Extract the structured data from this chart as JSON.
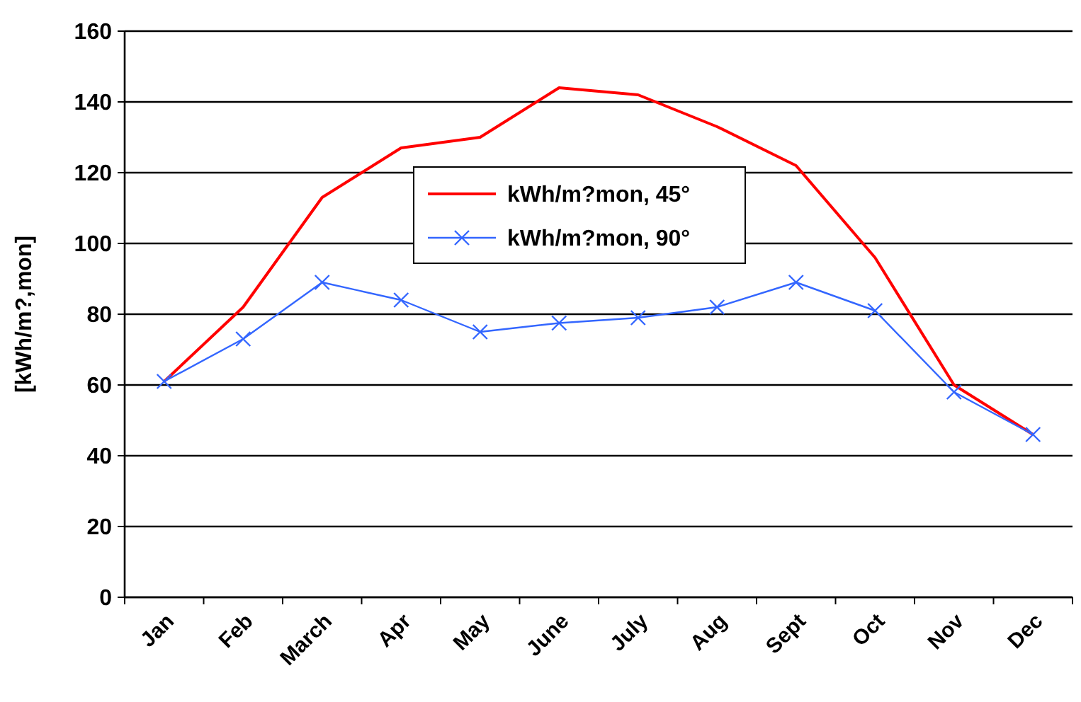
{
  "chart_data": {
    "type": "line",
    "ylabel": "[kWh/m?,mon]",
    "categories": [
      "Jan",
      "Feb",
      "March",
      "Apr",
      "May",
      "June",
      "July",
      "Aug",
      "Sept",
      "Oct",
      "Nov",
      "Dec"
    ],
    "series": [
      {
        "name": "kWh/m?mon, 45°",
        "color": "#ff0000",
        "marker": "none",
        "values": [
          61,
          82,
          113,
          127,
          130,
          144,
          142,
          133,
          122,
          96,
          60,
          46
        ]
      },
      {
        "name": "kWh/m?mon, 90°",
        "color": "#3366ff",
        "marker": "cross",
        "values": [
          61,
          73,
          89,
          84,
          75,
          77.5,
          79,
          82,
          89,
          81,
          58,
          46
        ]
      }
    ],
    "ylim": [
      0,
      160
    ],
    "yticks": [
      0,
      20,
      40,
      60,
      80,
      100,
      120,
      140,
      160
    ],
    "grid": "y",
    "legend": "top",
    "line_style": "solid"
  }
}
